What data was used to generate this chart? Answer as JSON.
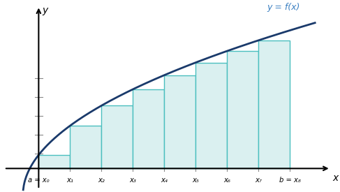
{
  "func_label": "y = f(x)",
  "x_label": "x",
  "y_label": "y",
  "n_rects": 8,
  "rect_fill_color": "#daf0f0",
  "rect_edge_color": "#4bbfbf",
  "curve_color": "#1a3a6b",
  "label_color": "#3a7fc1",
  "axis_label_positions": [
    "a = x₀",
    "x₁",
    "x₂",
    "x₃",
    "x₄",
    "x₅",
    "x₆",
    "x₇",
    "b = x₈"
  ],
  "background_color": "#ffffff",
  "tick_color": "#888888"
}
